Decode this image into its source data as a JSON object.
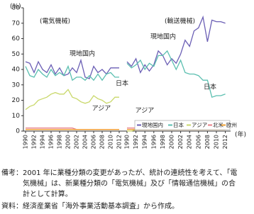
{
  "chart_data": [
    {
      "type": "line",
      "title": "(電気機械)",
      "ylabel": "(%)",
      "xlabel": "(年)",
      "categories": [
        "1990",
        null,
        "1992",
        null,
        "1994",
        null,
        "1996",
        null,
        "1998",
        null,
        "2000",
        null,
        "2002",
        null,
        "2004",
        null,
        "2006",
        null,
        "2008",
        null,
        "2010",
        null,
        "2012"
      ],
      "ylim": [
        0,
        80
      ],
      "yticks": [
        0,
        10,
        20,
        30,
        40,
        50,
        60,
        70,
        80
      ],
      "annotations": [
        "現地国内",
        "日本",
        "アジア"
      ],
      "series": [
        {
          "name": "現地国内",
          "color": "#6b5fb5",
          "values": [
            45,
            44,
            38,
            45,
            40,
            38,
            43,
            37,
            41,
            36,
            37,
            41,
            38,
            46,
            35,
            34,
            42,
            38,
            40,
            37,
            41,
            41,
            41
          ]
        },
        {
          "name": "日本",
          "color": "#5bbfb0",
          "values": [
            42,
            36,
            35,
            40,
            37,
            35,
            40,
            36,
            38,
            36,
            42,
            33,
            35,
            35,
            33,
            36,
            33,
            37,
            33,
            37,
            38,
            35,
            35
          ]
        },
        {
          "name": "アジア",
          "color": "#c9d86a",
          "values": [
            14,
            16,
            17,
            20,
            21,
            22,
            24,
            25,
            24,
            24,
            27,
            22,
            21,
            19,
            18,
            19,
            23,
            21,
            20,
            18,
            19,
            22,
            22
          ]
        },
        {
          "name": "北米",
          "color": "#e87e86",
          "values": [
            2,
            2,
            2,
            2,
            2,
            2,
            2,
            2,
            2,
            2,
            2,
            2,
            1,
            1,
            1,
            1,
            1,
            1,
            1,
            1,
            1,
            1,
            1
          ]
        },
        {
          "name": "欧州",
          "color": "#f0a030",
          "values": [
            1,
            1,
            1,
            1,
            1,
            1,
            1,
            1,
            1,
            1,
            1,
            1,
            1,
            1,
            1,
            1,
            1,
            1,
            1,
            1,
            1,
            1,
            1
          ]
        }
      ]
    },
    {
      "type": "line",
      "title": "(輸送機械)",
      "categories": [
        "1990",
        null,
        "1992",
        null,
        "1994",
        null,
        "1996",
        null,
        "1998",
        null,
        "2000",
        null,
        "2002",
        null,
        "2004",
        null,
        "2006",
        null,
        "2008",
        null,
        "2010",
        null,
        "2012"
      ],
      "ylim": [
        0,
        80
      ],
      "annotations": [
        "現地国内",
        "日本",
        "アジア"
      ],
      "series": [
        {
          "values": [
            45,
            42,
            47,
            38,
            43,
            39,
            43,
            52,
            49,
            43,
            47,
            44,
            50,
            59,
            55,
            65,
            67,
            74,
            58,
            72,
            71,
            71,
            70
          ]
        },
        {
          "values": [
            44,
            41,
            43,
            46,
            40,
            44,
            42,
            49,
            49,
            52,
            46,
            40,
            46,
            38,
            37,
            37,
            36,
            33,
            33,
            22,
            23,
            23,
            24
          ]
        },
        {
          "values": [
            0,
            0,
            1,
            1,
            2,
            1,
            2,
            2,
            1,
            1,
            3,
            2,
            6,
            3,
            4,
            4,
            5,
            4,
            5,
            3,
            4,
            5,
            5
          ]
        },
        {
          "values": [
            2,
            2,
            2,
            2,
            2,
            2,
            2,
            2,
            2,
            2,
            2,
            2,
            2,
            2,
            2,
            2,
            2,
            2,
            2,
            2,
            2,
            2,
            2
          ]
        },
        {
          "values": [
            1,
            1,
            1,
            1,
            1,
            1,
            1,
            1,
            1,
            1,
            1,
            1,
            1,
            1,
            1,
            1,
            1,
            1,
            1,
            1,
            1,
            1,
            1
          ]
        }
      ]
    }
  ],
  "notes": {
    "lines": [
      "備考：2001 年に業種分類の変更があったが、統計の連続性を考えて、「電",
      "　　　気機械」は、新業種分類の「電気機械」及び「情報通信機械」の合",
      "　　　計として計算。"
    ],
    "source": "資料：経済産業省「海外事業活動基本調査」から作成。"
  }
}
